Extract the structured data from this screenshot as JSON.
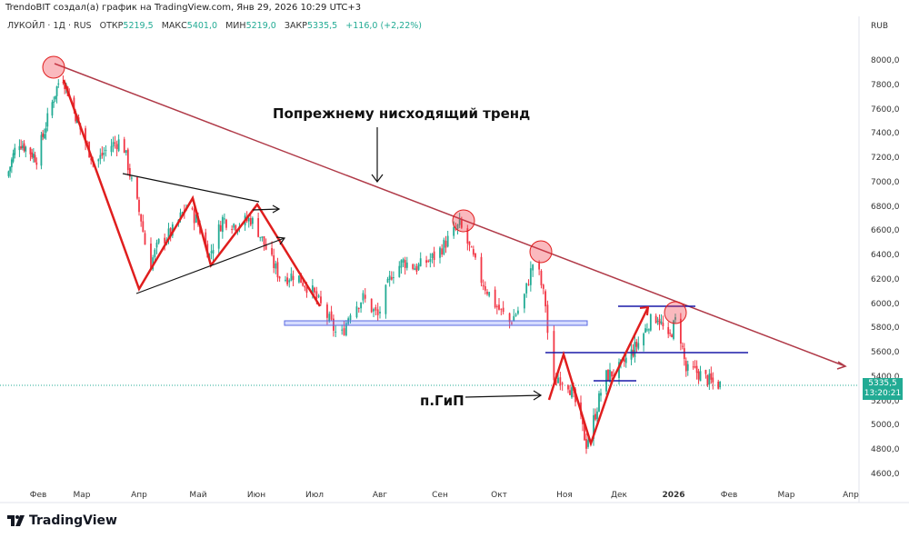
{
  "header": {
    "attribution": "TrendoBIT создал(а) график на TradingView.com, Янв 29, 2026 10:29 UTC+3"
  },
  "legend": {
    "symbol": "ЛУКОЙЛ · 1Д · RUS",
    "open_label": "ОТКР",
    "open": "5219,5",
    "high_label": "МАКС",
    "high": "5401,0",
    "low_label": "МИН",
    "low": "5219,0",
    "close_label": "ЗАКР",
    "close": "5335,5",
    "change": "+116,0 (+2,22%)"
  },
  "currency": "RUB",
  "price_tag": {
    "price": "5335,5",
    "countdown": "13:20:21"
  },
  "logo": "TradingView",
  "colors": {
    "up": "#22ab94",
    "down": "#f23645",
    "trendline": "#b03a48",
    "zigzag": "#e01e1e",
    "level": "#1a1aa8"
  },
  "chart_data": {
    "type": "candlestick",
    "title": "",
    "y_ticks": [
      "8000,0",
      "7800,0",
      "7600,0",
      "7400,0",
      "7200,0",
      "7000,0",
      "6800,0",
      "6600,0",
      "6400,0",
      "6200,0",
      "6000,0",
      "5800,0",
      "5600,0",
      "5400,0",
      "5200,0",
      "5000,0",
      "4800,0",
      "4600,0"
    ],
    "ylim": [
      4600,
      8000
    ],
    "x_ticks": [
      {
        "label": "Фев",
        "date": "2025-02-01"
      },
      {
        "label": "Мар",
        "date": "2025-03-01"
      },
      {
        "label": "Апр",
        "date": "2025-04-01"
      },
      {
        "label": "Май",
        "date": "2025-05-01"
      },
      {
        "label": "Июн",
        "date": "2025-06-01"
      },
      {
        "label": "Июл",
        "date": "2025-07-01"
      },
      {
        "label": "Авг",
        "date": "2025-08-01"
      },
      {
        "label": "Сен",
        "date": "2025-09-01"
      },
      {
        "label": "Окт",
        "date": "2025-10-01"
      },
      {
        "label": "Ноя",
        "date": "2025-11-01"
      },
      {
        "label": "Дек",
        "date": "2025-12-01"
      },
      {
        "label": "2026",
        "date": "2026-01-01"
      },
      {
        "label": "Фев",
        "date": "2026-02-01"
      },
      {
        "label": "Мар",
        "date": "2026-03-01"
      },
      {
        "label": "Апр",
        "date": "2026-04-01"
      }
    ],
    "close_series": [
      [
        "2025-01-12",
        7050
      ],
      [
        "2025-01-19",
        7350
      ],
      [
        "2025-01-31",
        7200
      ],
      [
        "2025-02-11",
        7700
      ],
      [
        "2025-02-16",
        7900
      ],
      [
        "2025-02-20",
        7750
      ],
      [
        "2025-03-01",
        7400
      ],
      [
        "2025-03-08",
        7150
      ],
      [
        "2025-03-16",
        7300
      ],
      [
        "2025-03-23",
        7350
      ],
      [
        "2025-03-28",
        7000
      ],
      [
        "2025-04-02",
        6700
      ],
      [
        "2025-04-06",
        6300
      ],
      [
        "2025-04-11",
        6500
      ],
      [
        "2025-04-18",
        6600
      ],
      [
        "2025-04-25",
        6800
      ],
      [
        "2025-04-30",
        6700
      ],
      [
        "2025-05-07",
        6400
      ],
      [
        "2025-05-14",
        6700
      ],
      [
        "2025-05-21",
        6650
      ],
      [
        "2025-05-29",
        6700
      ],
      [
        "2025-06-02",
        6600
      ],
      [
        "2025-06-09",
        6350
      ],
      [
        "2025-06-14",
        6200
      ],
      [
        "2025-06-21",
        6250
      ],
      [
        "2025-06-30",
        6100
      ],
      [
        "2025-07-07",
        5900
      ],
      [
        "2025-07-13",
        5700
      ],
      [
        "2025-07-18",
        5950
      ],
      [
        "2025-07-24",
        6050
      ],
      [
        "2025-07-31",
        5900
      ],
      [
        "2025-08-07",
        6250
      ],
      [
        "2025-08-13",
        6350
      ],
      [
        "2025-08-20",
        6300
      ],
      [
        "2025-08-30",
        6400
      ],
      [
        "2025-09-06",
        6550
      ],
      [
        "2025-09-11",
        6650
      ],
      [
        "2025-09-15",
        6500
      ],
      [
        "2025-09-22",
        6200
      ],
      [
        "2025-09-29",
        6000
      ],
      [
        "2025-10-06",
        5850
      ],
      [
        "2025-10-12",
        6000
      ],
      [
        "2025-10-18",
        6400
      ],
      [
        "2025-10-23",
        6000
      ],
      [
        "2025-10-26",
        5300
      ],
      [
        "2025-10-29",
        5400
      ],
      [
        "2025-11-03",
        5350
      ],
      [
        "2025-11-08",
        5150
      ],
      [
        "2025-11-13",
        4850
      ],
      [
        "2025-11-18",
        5100
      ],
      [
        "2025-11-23",
        5400
      ],
      [
        "2025-11-30",
        5450
      ],
      [
        "2025-12-08",
        5600
      ],
      [
        "2025-12-13",
        5700
      ],
      [
        "2025-12-18",
        5850
      ],
      [
        "2025-12-23",
        5900
      ],
      [
        "2025-12-29",
        5700
      ],
      [
        "2026-01-03",
        5900
      ],
      [
        "2026-01-08",
        5450
      ],
      [
        "2026-01-13",
        5450
      ],
      [
        "2026-01-18",
        5400
      ],
      [
        "2026-01-23",
        5350
      ],
      [
        "2026-01-28",
        5335.5
      ]
    ],
    "annotations": [
      {
        "text": "Попрежнему нисходящий тренд"
      },
      {
        "text": "п.ГиП"
      }
    ]
  }
}
